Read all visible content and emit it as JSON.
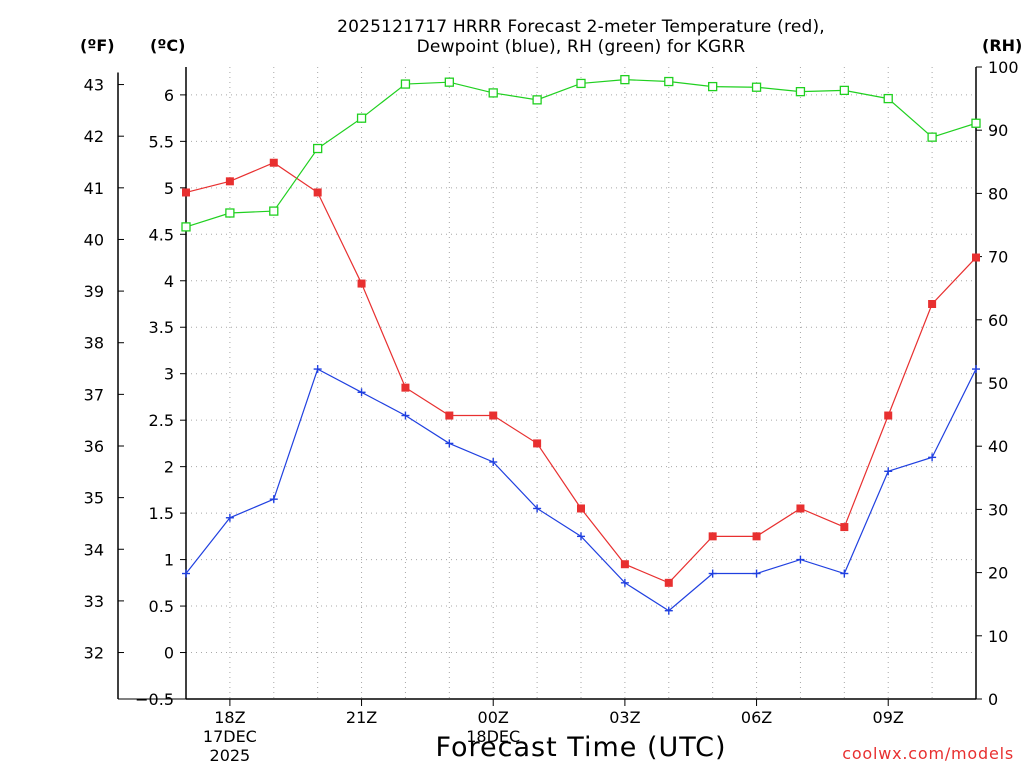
{
  "chart_data": {
    "type": "line",
    "title_line1": "2025121717 HRRR Forecast 2-meter Temperature (red),",
    "title_line2": "Dewpoint (blue), RH (green) for KGRR",
    "xlabel": "Forecast Time (UTC)",
    "units": {
      "fahrenheit": "(ºF)",
      "celsius": "(ºC)",
      "rh": "(RH)"
    },
    "x_hours": [
      17,
      18,
      19,
      20,
      21,
      22,
      23,
      24,
      25,
      26,
      27,
      28,
      29,
      30,
      31,
      32,
      33,
      34,
      35
    ],
    "x_ticks": [
      {
        "hour": 18,
        "label": "18Z",
        "sub": [
          "17DEC",
          "2025"
        ]
      },
      {
        "hour": 21,
        "label": "21Z",
        "sub": []
      },
      {
        "hour": 24,
        "label": "00Z",
        "sub": [
          "18DEC"
        ]
      },
      {
        "hour": 27,
        "label": "03Z",
        "sub": []
      },
      {
        "hour": 30,
        "label": "06Z",
        "sub": []
      },
      {
        "hour": 33,
        "label": "09Z",
        "sub": []
      }
    ],
    "xlim": [
      17,
      35
    ],
    "celsius_axis": {
      "range": [
        -0.5,
        6.3
      ],
      "ticks": [
        -0.5,
        0,
        0.5,
        1,
        1.5,
        2,
        2.5,
        3,
        3.5,
        4,
        4.5,
        5,
        5.5,
        6
      ]
    },
    "fahrenheit_axis": {
      "ticks": [
        32,
        33,
        34,
        35,
        36,
        37,
        38,
        39,
        40,
        41,
        42,
        43
      ]
    },
    "rh_axis": {
      "range": [
        0,
        100
      ],
      "ticks": [
        0,
        10,
        20,
        30,
        40,
        50,
        60,
        70,
        80,
        90,
        100
      ]
    },
    "grid": true,
    "series": [
      {
        "name": "Temperature",
        "axis": "celsius",
        "color": "#e83030",
        "marker": "square",
        "values": [
          4.95,
          5.07,
          5.27,
          4.95,
          3.97,
          2.85,
          2.55,
          2.55,
          2.25,
          1.55,
          0.95,
          0.75,
          1.25,
          1.25,
          1.55,
          1.35,
          2.55,
          3.75,
          4.25
        ]
      },
      {
        "name": "Dewpoint",
        "axis": "celsius",
        "color": "#2040e0",
        "marker": "plus",
        "values": [
          0.85,
          1.45,
          1.65,
          3.05,
          2.8,
          2.55,
          2.25,
          2.05,
          1.55,
          1.25,
          0.75,
          0.45,
          0.85,
          0.85,
          1.0,
          0.85,
          1.95,
          2.1,
          3.05
        ]
      },
      {
        "name": "RH",
        "axis": "rh",
        "color": "#20d020",
        "marker": "open-square",
        "values": [
          74.7,
          76.9,
          77.2,
          87.1,
          91.9,
          97.3,
          97.6,
          95.9,
          94.8,
          97.4,
          98.0,
          97.7,
          96.9,
          96.8,
          96.1,
          96.3,
          95.0,
          88.9,
          91.1
        ]
      }
    ]
  },
  "credit": "coolwx.com/models"
}
